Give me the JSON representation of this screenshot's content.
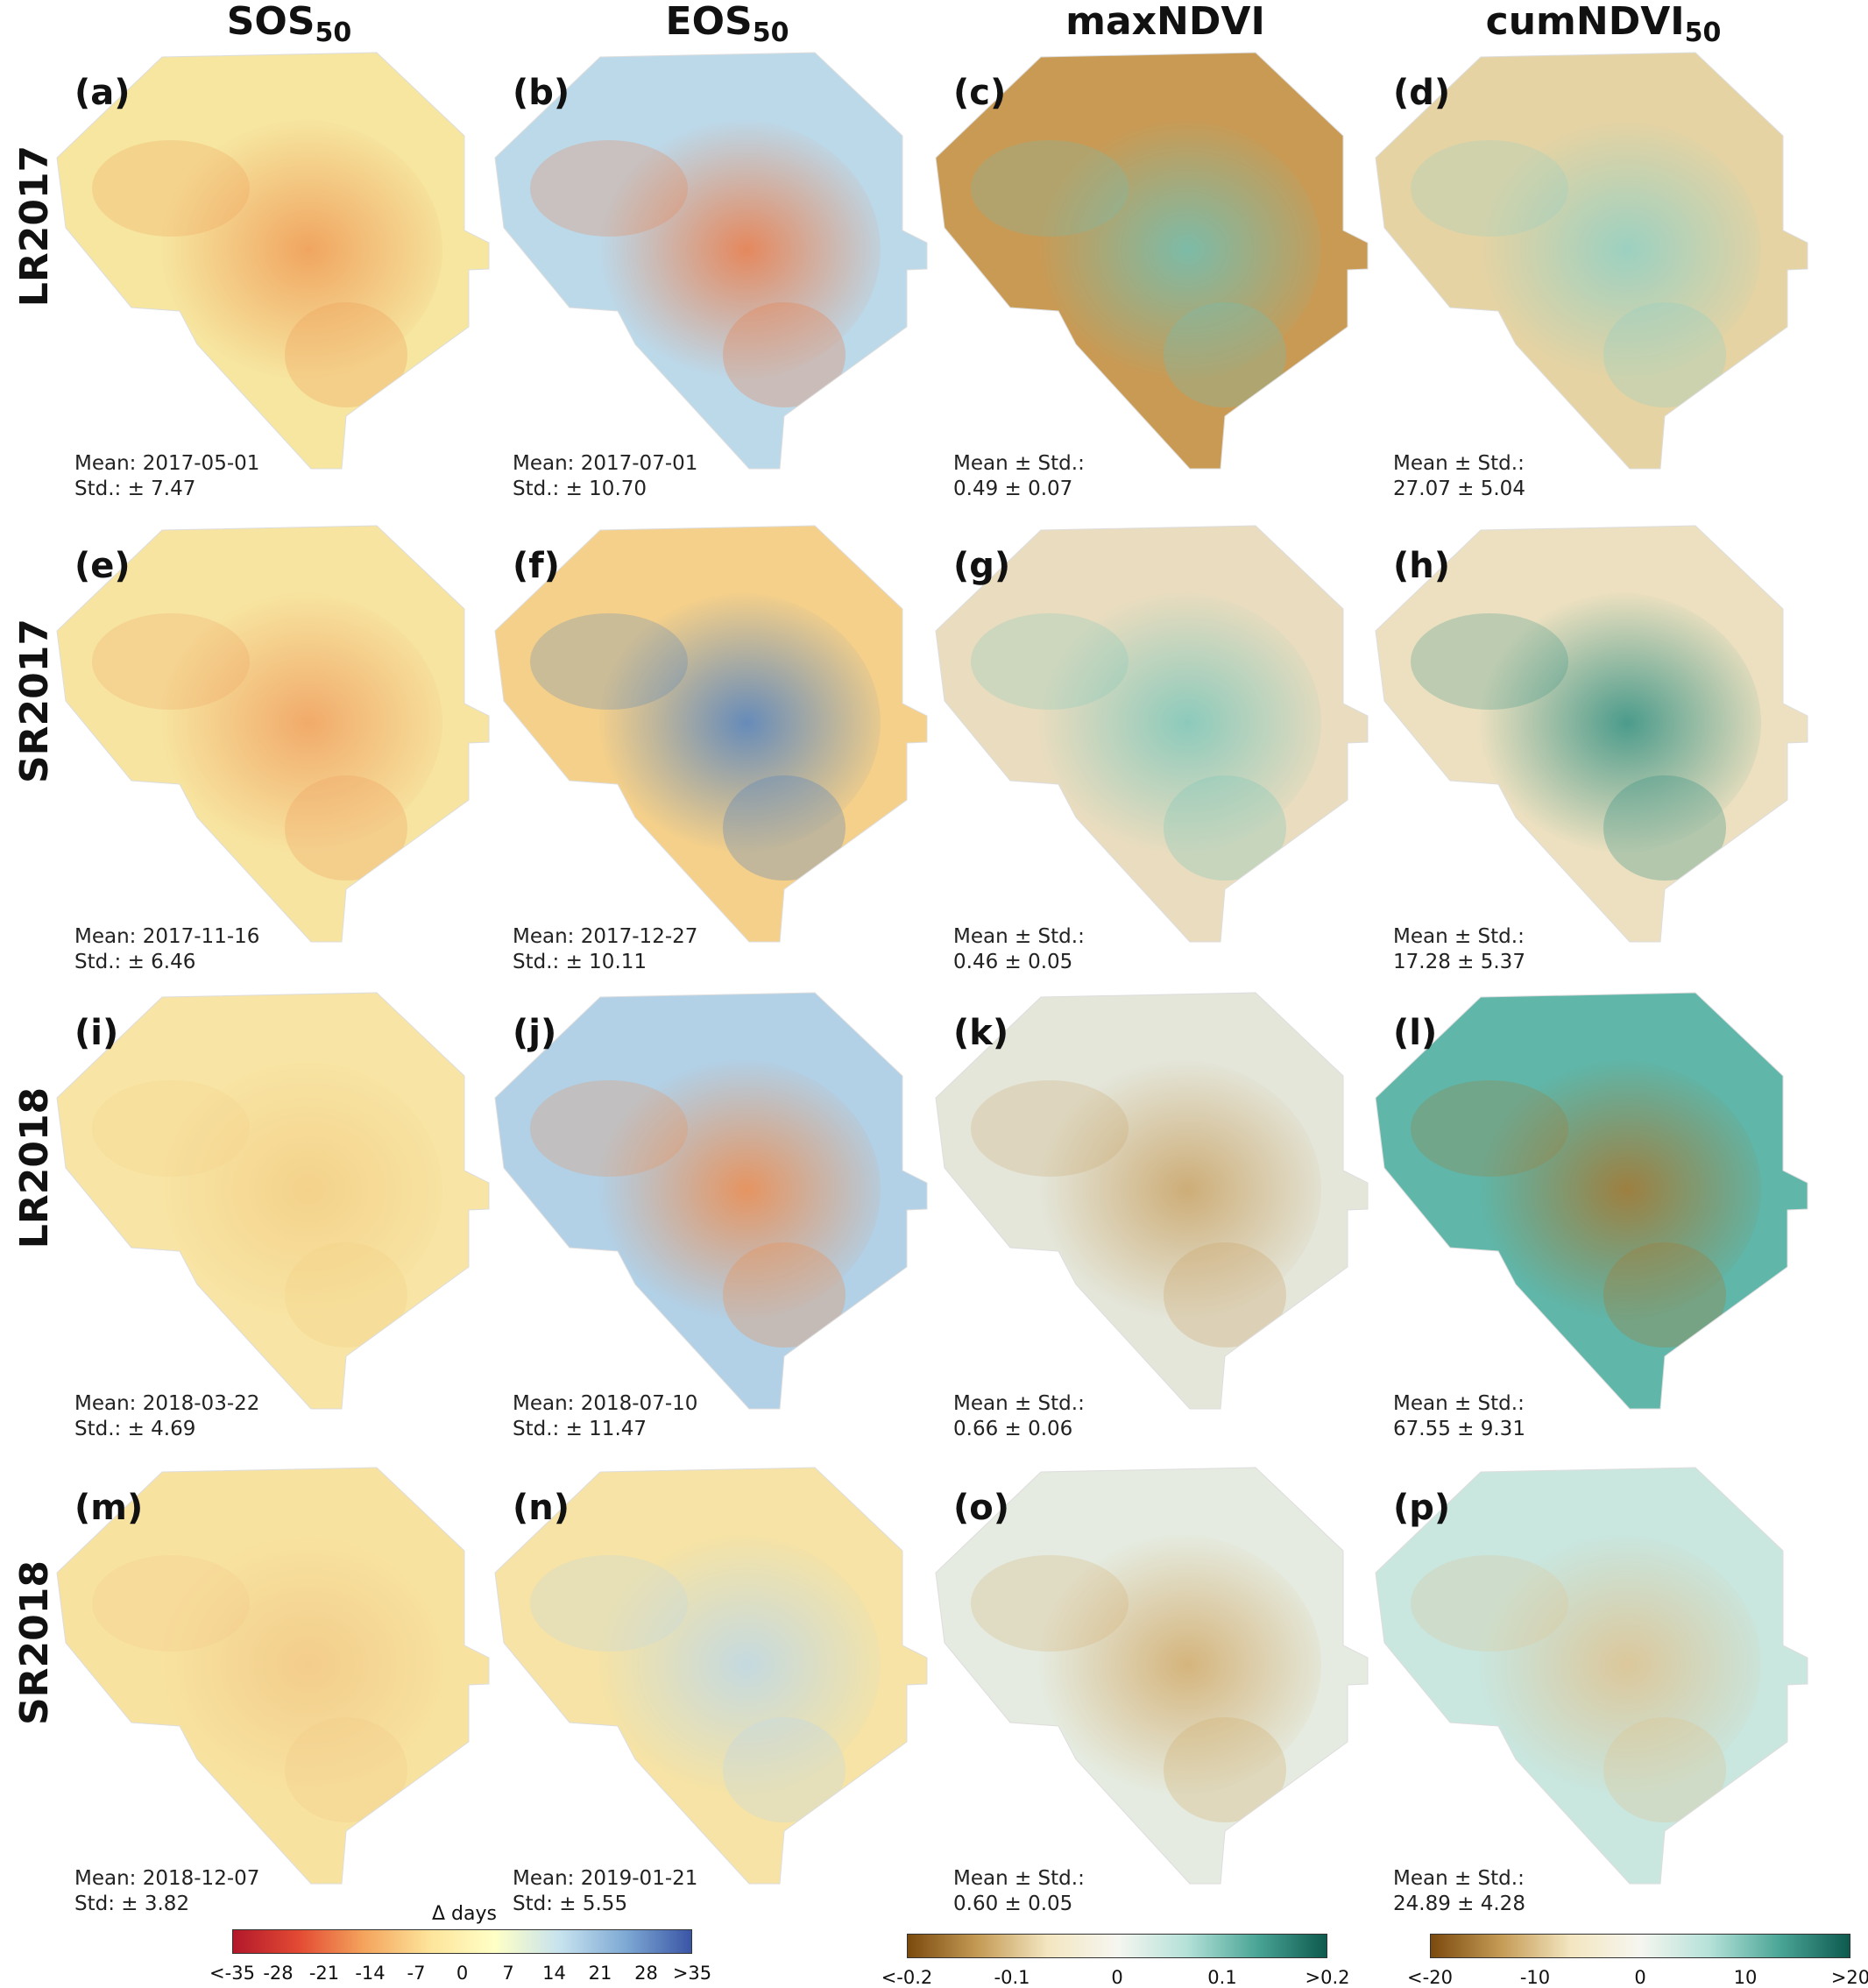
{
  "columns": {
    "sos": {
      "main": "SOS",
      "sub": "50"
    },
    "eos": {
      "main": "EOS",
      "sub": "50"
    },
    "maxndvi": {
      "main": "maxNDVI",
      "sub": ""
    },
    "cumndvi": {
      "main": "cumNDVI",
      "sub": "50"
    }
  },
  "rows": [
    "LR2017",
    "SR2017",
    "LR2018",
    "SR2018"
  ],
  "panels": [
    {
      "label": "(a)",
      "line1": "Mean: 2017-05-01",
      "line2": "Std.: ± 7.47",
      "palette": "days",
      "base": "#f6e6a0",
      "accent": "#ef9a55"
    },
    {
      "label": "(b)",
      "line1": "Mean: 2017-07-01",
      "line2": "Std.: ± 10.70",
      "palette": "days",
      "base": "#bcd9ea",
      "accent": "#ec7a45"
    },
    {
      "label": "(c)",
      "line1": "Mean ± Std.:",
      "line2": "0.49 ± 0.07",
      "palette": "ndvi",
      "base": "#c99a54",
      "accent": "#6fc1b6"
    },
    {
      "label": "(d)",
      "line1": "Mean ± Std.:",
      "line2": "27.07 ± 5.04",
      "palette": "ndvi",
      "base": "#e6d3a3",
      "accent": "#8fd0c6"
    },
    {
      "label": "(e)",
      "line1": "Mean: 2017-11-16",
      "line2": "Std.: ± 6.46",
      "palette": "days",
      "base": "#f7e4a0",
      "accent": "#f0a060"
    },
    {
      "label": "(f)",
      "line1": "Mean: 2017-12-27",
      "line2": "Std.: ± 10.11",
      "palette": "days",
      "base": "#f5d08a",
      "accent": "#4d7fc1"
    },
    {
      "label": "(g)",
      "line1": "Mean ± Std.:",
      "line2": "0.46 ± 0.05",
      "palette": "ndvi",
      "base": "#e9dcbf",
      "accent": "#7cc7bb"
    },
    {
      "label": "(h)",
      "line1": "Mean ± Std.:",
      "line2": "17.28 ± 5.37",
      "palette": "ndvi",
      "base": "#ece0c0",
      "accent": "#2f8f82"
    },
    {
      "label": "(i)",
      "line1": "Mean: 2018-03-22",
      "line2": "Std.: ± 4.69",
      "palette": "days",
      "base": "#f8e4a4",
      "accent": "#f3cf86"
    },
    {
      "label": "(j)",
      "line1": "Mean: 2018-07-10",
      "line2": "Std.: ± 11.47",
      "palette": "days",
      "base": "#b2d0e6",
      "accent": "#ee8a4a"
    },
    {
      "label": "(k)",
      "line1": "Mean ± Std.:",
      "line2": "0.66 ± 0.06",
      "palette": "ndvi",
      "base": "#e4e6da",
      "accent": "#c9a366"
    },
    {
      "label": "(l)",
      "line1": "Mean ± Std.:",
      "line2": "67.55 ± 9.31",
      "palette": "ndvi",
      "base": "#5fb6a9",
      "accent": "#a8762e"
    },
    {
      "label": "(m)",
      "line1": "Mean: 2018-12-07",
      "line2": "Std: ± 3.82",
      "palette": "days",
      "base": "#f8e2a0",
      "accent": "#f2c987"
    },
    {
      "label": "(n)",
      "line1": "Mean: 2019-01-21",
      "line2": "Std: ± 5.55",
      "palette": "days",
      "base": "#f6e3a5",
      "accent": "#bcd8ea"
    },
    {
      "label": "(o)",
      "line1": "Mean ± Std.:",
      "line2": "0.60 ± 0.05",
      "palette": "ndvi",
      "base": "#e5ebe0",
      "accent": "#d2ab6b"
    },
    {
      "label": "(p)",
      "line1": "Mean ± Std.:",
      "line2": "24.89 ± 4.28",
      "palette": "ndvi",
      "base": "#c9e6df",
      "accent": "#dfc28f"
    }
  ],
  "legends": {
    "days": {
      "title": "Δ days",
      "ticks": [
        "<-35",
        "-28",
        "-21",
        "-14",
        "-7",
        "0",
        "7",
        "14",
        "21",
        "28",
        ">35"
      ],
      "colors": [
        "#b2182b",
        "#e34a33",
        "#f4a45d",
        "#fde49a",
        "#ffffc6",
        "#c6e2ee",
        "#7ea9d4",
        "#3a55a6"
      ]
    },
    "maxndvi": {
      "ticks": [
        "<-0.2",
        "-0.1",
        "0",
        "0.1",
        ">0.2"
      ],
      "colors": [
        "#7b4a0e",
        "#c49a55",
        "#f3e6c0",
        "#f6f6f0",
        "#b4e1d8",
        "#4aa596",
        "#0e5a4f"
      ]
    },
    "cumndvi": {
      "ticks": [
        "<-20",
        "-10",
        "0",
        "10",
        ">20"
      ],
      "colors": [
        "#7b4a0e",
        "#c49a55",
        "#f3e6c0",
        "#f6f6f0",
        "#b4e1d8",
        "#4aa596",
        "#0e5a4f"
      ]
    }
  }
}
